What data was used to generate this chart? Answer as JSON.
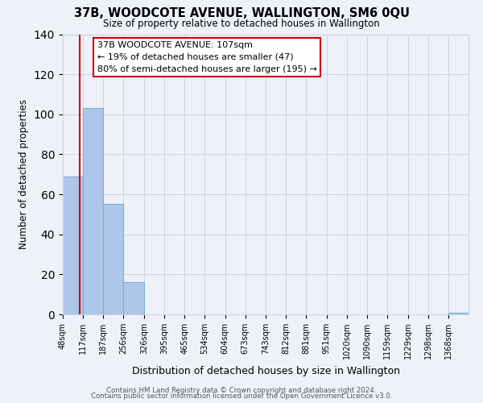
{
  "title": "37B, WOODCOTE AVENUE, WALLINGTON, SM6 0QU",
  "subtitle": "Size of property relative to detached houses in Wallington",
  "xlabel": "Distribution of detached houses by size in Wallington",
  "ylabel": "Number of detached properties",
  "bar_edges": [
    48,
    117,
    187,
    256,
    326,
    395,
    465,
    534,
    604,
    673,
    743,
    812,
    881,
    951,
    1020,
    1090,
    1159,
    1229,
    1298,
    1368,
    1437
  ],
  "bar_heights": [
    69,
    103,
    55,
    16,
    0,
    0,
    0,
    0,
    0,
    0,
    0,
    0,
    0,
    0,
    0,
    0,
    0,
    0,
    0,
    1
  ],
  "bar_color": "#aec6e8",
  "bar_edgecolor": "#7aaed6",
  "property_line_x": 107,
  "property_line_color": "#cc0000",
  "annotation_line1": "37B WOODCOTE AVENUE: 107sqm",
  "annotation_line2": "← 19% of detached houses are smaller (47)",
  "annotation_line3": "80% of semi-detached houses are larger (195) →",
  "ylim": [
    0,
    140
  ],
  "yticks": [
    0,
    20,
    40,
    60,
    80,
    100,
    120,
    140
  ],
  "bg_color": "#eef2f8",
  "plot_bg_color": "#eef2f8",
  "grid_color": "#c8d4e8",
  "tick_label_fontsize": 7.0,
  "ylabel_fontsize": 8.5,
  "xlabel_fontsize": 9.0,
  "footer_line1": "Contains HM Land Registry data © Crown copyright and database right 2024.",
  "footer_line2": "Contains public sector information licensed under the Open Government Licence v3.0."
}
